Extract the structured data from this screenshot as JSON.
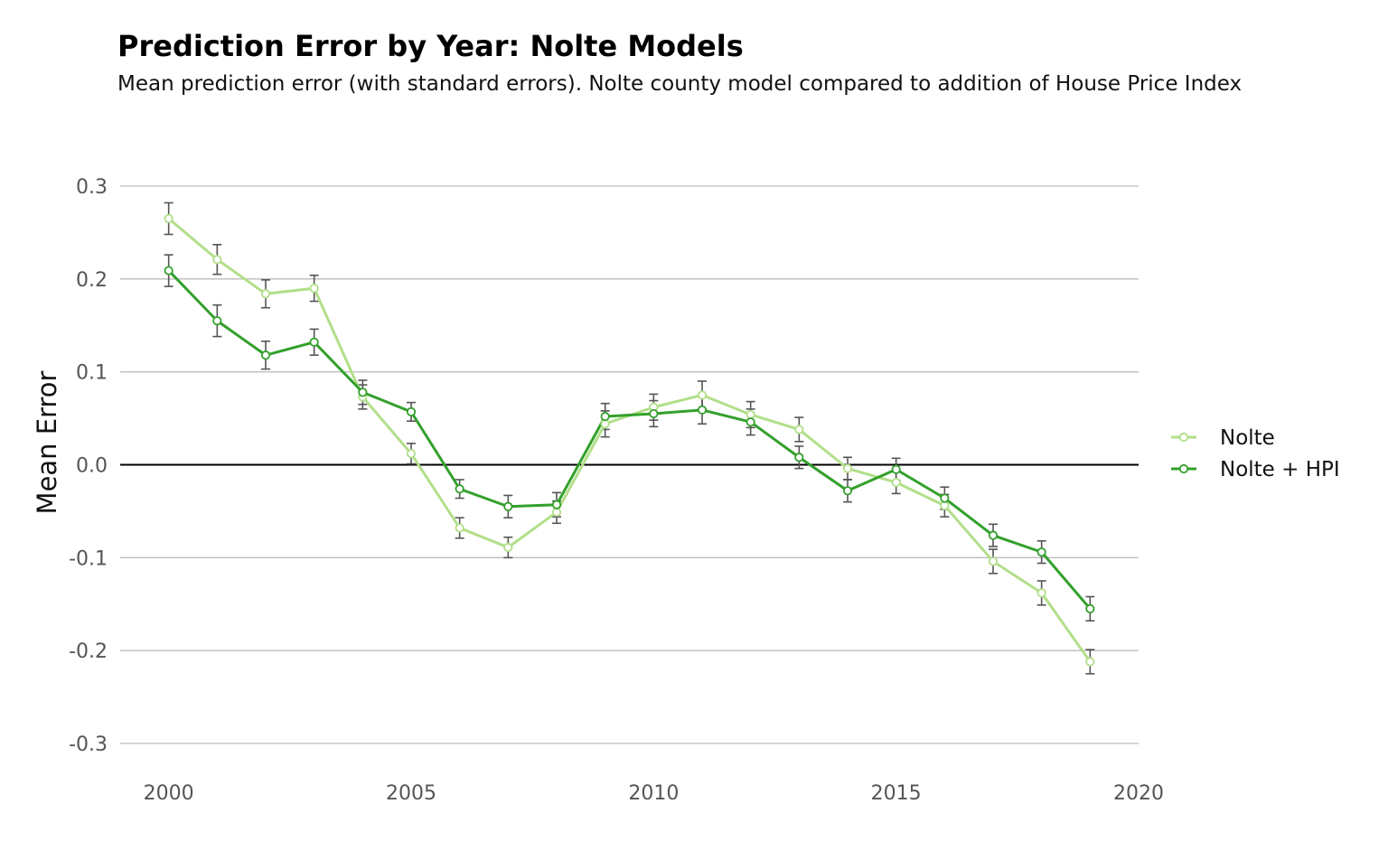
{
  "chart_data": {
    "type": "line",
    "title": "Prediction Error by Year: Nolte Models",
    "subtitle": "Mean prediction error (with standard errors). Nolte county model compared to addition of House Price Index",
    "xlabel": "",
    "ylabel": "Mean Error",
    "xlim": [
      1999,
      2020
    ],
    "ylim": [
      -0.3,
      0.3
    ],
    "x_ticks": [
      2000,
      2005,
      2010,
      2015,
      2020
    ],
    "y_ticks": [
      0.3,
      0.2,
      0.1,
      0.0,
      -0.1,
      -0.2,
      -0.3
    ],
    "y_tick_labels": [
      "0.3",
      "0.2",
      "0.1",
      "0.0",
      "-0.1",
      "-0.2",
      "-0.3"
    ],
    "grid": true,
    "zero_line": true,
    "legend_position": "right",
    "error_bar_color": "#555555",
    "x": [
      2000,
      2001,
      2002,
      2003,
      2004,
      2005,
      2006,
      2007,
      2008,
      2009,
      2010,
      2011,
      2012,
      2013,
      2014,
      2015,
      2016,
      2017,
      2018,
      2019
    ],
    "series": [
      {
        "name": "Nolte",
        "color": "#b2df8a",
        "values": [
          0.265,
          0.221,
          0.184,
          0.19,
          0.073,
          0.012,
          -0.068,
          -0.089,
          -0.051,
          0.044,
          0.062,
          0.075,
          0.054,
          0.038,
          -0.004,
          -0.019,
          -0.044,
          -0.104,
          -0.138,
          -0.212
        ],
        "se": [
          0.017,
          0.016,
          0.015,
          0.014,
          0.013,
          0.011,
          0.011,
          0.011,
          0.012,
          0.014,
          0.014,
          0.015,
          0.014,
          0.013,
          0.012,
          0.012,
          0.012,
          0.013,
          0.013,
          0.013
        ]
      },
      {
        "name": "Nolte + HPI",
        "color": "#33a02c",
        "values": [
          0.209,
          0.155,
          0.118,
          0.132,
          0.078,
          0.057,
          -0.026,
          -0.045,
          -0.043,
          0.052,
          0.055,
          0.059,
          0.046,
          0.008,
          -0.028,
          -0.005,
          -0.036,
          -0.076,
          -0.094,
          -0.155
        ],
        "se": [
          0.017,
          0.017,
          0.015,
          0.014,
          0.013,
          0.01,
          0.01,
          0.012,
          0.013,
          0.014,
          0.014,
          0.015,
          0.014,
          0.012,
          0.012,
          0.012,
          0.012,
          0.012,
          0.012,
          0.013
        ]
      }
    ]
  }
}
